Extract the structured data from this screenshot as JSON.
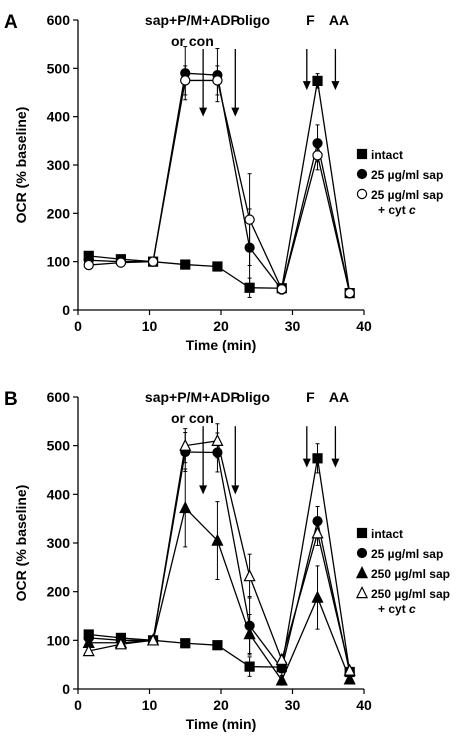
{
  "colors": {
    "axis": "#000000",
    "marker_fill": "#000000",
    "open_marker_fill": "#ffffff",
    "background": "#ffffff"
  },
  "chart_data": [
    {
      "type": "line",
      "panel_label": "A",
      "xlabel": "Time (min)",
      "ylabel": "OCR (% baseline)",
      "xlim": [
        0,
        40
      ],
      "ylim": [
        0,
        600
      ],
      "xticks": [
        "0",
        "10",
        "20",
        "30",
        "40"
      ],
      "yticks": [
        "0",
        "100",
        "200",
        "300",
        "400",
        "500",
        "600"
      ],
      "grid": false,
      "legend_position": "right",
      "annotations": [
        {
          "text": "sap+P/M+ADP",
          "x": 16,
          "y": 600
        },
        {
          "text": "or con",
          "x": 16,
          "y": 557
        },
        {
          "text": "oligo",
          "x": 24.5,
          "y": 600
        },
        {
          "text": "F",
          "x": 32.5,
          "y": 600
        },
        {
          "text": "AA",
          "x": 36.5,
          "y": 600
        }
      ],
      "arrows": [
        {
          "x": 17.5,
          "y_from": 540,
          "y_to": 400
        },
        {
          "x": 22,
          "y_from": 540,
          "y_to": 400
        },
        {
          "x": 32,
          "y_from": 540,
          "y_to": 455
        },
        {
          "x": 36,
          "y_from": 540,
          "y_to": 455
        }
      ],
      "series": [
        {
          "name": "intact",
          "marker": "square-filled",
          "x": [
            1.5,
            6,
            10.5,
            15,
            19.5,
            24,
            28.5,
            33.5,
            38
          ],
          "y": [
            112,
            105,
            100,
            94,
            90,
            46,
            45,
            474,
            35
          ],
          "err": [
            5,
            5,
            0,
            5,
            5,
            20,
            8,
            15,
            5
          ]
        },
        {
          "name": "25 µg/ml sap",
          "marker": "circle-filled",
          "x": [
            1.5,
            6,
            10.5,
            15,
            19.5,
            24,
            28.5,
            33.5,
            38
          ],
          "y": [
            103,
            100,
            100,
            490,
            486,
            129,
            42,
            345,
            34
          ],
          "err": [
            5,
            5,
            0,
            55,
            55,
            80,
            8,
            38,
            5
          ]
        },
        {
          "name": "25 µg/ml sap + cyt c",
          "marker": "circle-open",
          "x": [
            1.5,
            6,
            10.5,
            15,
            19.5,
            24,
            28.5,
            33.5,
            38
          ],
          "y": [
            93,
            98,
            100,
            475,
            475,
            187,
            43,
            320,
            35
          ],
          "err": [
            5,
            5,
            0,
            30,
            30,
            95,
            8,
            30,
            5
          ]
        }
      ]
    },
    {
      "type": "line",
      "panel_label": "B",
      "xlabel": "Time (min)",
      "ylabel": "OCR (% baseline)",
      "xlim": [
        0,
        40
      ],
      "ylim": [
        0,
        600
      ],
      "xticks": [
        "0",
        "10",
        "20",
        "30",
        "40"
      ],
      "yticks": [
        "0",
        "100",
        "200",
        "300",
        "400",
        "500",
        "600"
      ],
      "grid": false,
      "legend_position": "right",
      "annotations": [
        {
          "text": "sap+P/M+ADP",
          "x": 16,
          "y": 600
        },
        {
          "text": "or con",
          "x": 16,
          "y": 557
        },
        {
          "text": "oligo",
          "x": 24.5,
          "y": 600
        },
        {
          "text": "F",
          "x": 32.5,
          "y": 600
        },
        {
          "text": "AA",
          "x": 36.5,
          "y": 600
        }
      ],
      "arrows": [
        {
          "x": 17.5,
          "y_from": 540,
          "y_to": 400
        },
        {
          "x": 22,
          "y_from": 540,
          "y_to": 400
        },
        {
          "x": 32,
          "y_from": 540,
          "y_to": 455
        },
        {
          "x": 36,
          "y_from": 540,
          "y_to": 455
        }
      ],
      "series": [
        {
          "name": "intact",
          "marker": "square-filled",
          "x": [
            1.5,
            6,
            10.5,
            15,
            19.5,
            24,
            28.5,
            33.5,
            38
          ],
          "y": [
            112,
            105,
            100,
            94,
            90,
            46,
            45,
            474,
            35
          ],
          "err": [
            5,
            5,
            0,
            5,
            5,
            20,
            8,
            30,
            5
          ]
        },
        {
          "name": "25 µg/ml sap",
          "marker": "circle-filled",
          "x": [
            1.5,
            6,
            10.5,
            15,
            19.5,
            24,
            28.5,
            33.5,
            38
          ],
          "y": [
            105,
            100,
            100,
            487,
            486,
            130,
            42,
            345,
            34
          ],
          "err": [
            5,
            5,
            0,
            40,
            40,
            60,
            8,
            30,
            5
          ]
        },
        {
          "name": "250 µg/ml sap",
          "marker": "triangle-filled",
          "x": [
            1.5,
            6,
            10.5,
            15,
            19.5,
            24,
            28.5,
            33.5,
            38
          ],
          "y": [
            95,
            95,
            100,
            372,
            305,
            113,
            18,
            188,
            20
          ],
          "err": [
            10,
            8,
            0,
            80,
            80,
            40,
            10,
            65,
            5
          ]
        },
        {
          "name": "250 µg/ml sap + cyt c",
          "marker": "triangle-open",
          "x": [
            1.5,
            6,
            10.5,
            15,
            19.5,
            24,
            28.5,
            33.5,
            38
          ],
          "y": [
            78,
            92,
            100,
            500,
            510,
            232,
            60,
            320,
            38
          ],
          "err": [
            8,
            8,
            0,
            35,
            35,
            45,
            10,
            25,
            5
          ]
        }
      ]
    }
  ]
}
